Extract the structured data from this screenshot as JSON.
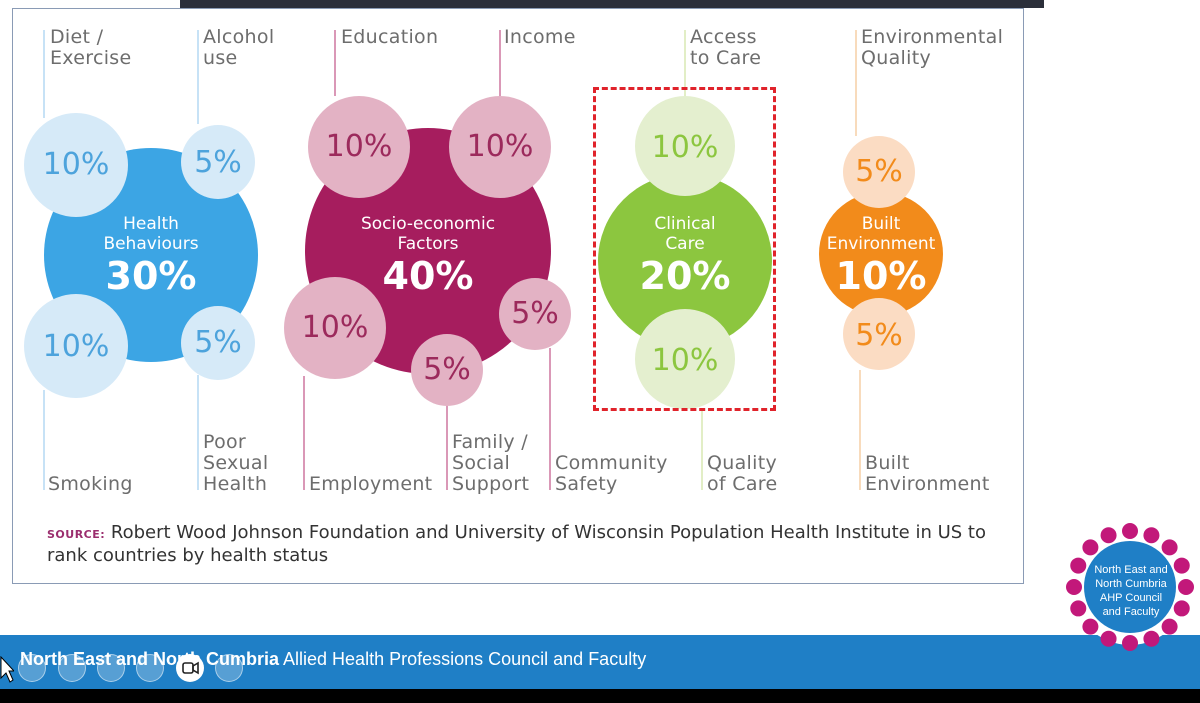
{
  "groups": [
    {
      "name": "Health Behaviours",
      "main_label": "Health\nBehaviours",
      "main_value": "30%",
      "color": "#3ca5e4",
      "sub_color": "#d6eaf8",
      "sub_text_color": "#4da3dc",
      "factors": [
        {
          "label": "Diet /\nExercise",
          "value": "10%"
        },
        {
          "label": "Alcohol\nuse",
          "value": "5%"
        },
        {
          "label": "Smoking",
          "value": "10%"
        },
        {
          "label": "Poor\nSexual\nHealth",
          "value": "5%"
        }
      ]
    },
    {
      "name": "Socio-economic Factors",
      "main_label": "Socio-economic\nFactors",
      "main_value": "40%",
      "color": "#a61d5e",
      "sub_color": "#e3b2c4",
      "sub_text_color": "#9c2a5c",
      "factors": [
        {
          "label": "Education",
          "value": "10%"
        },
        {
          "label": "Income",
          "value": "10%"
        },
        {
          "label": "Employment",
          "value": "10%"
        },
        {
          "label": "Family /\nSocial\nSupport",
          "value": "5%"
        },
        {
          "label": "Community\nSafety",
          "value": "5%"
        }
      ]
    },
    {
      "name": "Clinical Care",
      "main_label": "Clinical\nCare",
      "main_value": "20%",
      "color": "#8cc63f",
      "sub_color": "#e4efcf",
      "sub_text_color": "#8cc63f",
      "factors": [
        {
          "label": "Access\nto Care",
          "value": "10%"
        },
        {
          "label": "Quality\nof Care",
          "value": "10%"
        }
      ]
    },
    {
      "name": "Built Environment",
      "main_label": "Built\nEnvironment",
      "main_value": "10%",
      "color": "#f28b1b",
      "sub_color": "#fbdcc3",
      "sub_text_color": "#f28b1b",
      "factors": [
        {
          "label": "Environmental\nQuality",
          "value": "5%"
        },
        {
          "label": "Built\nEnvironment",
          "value": "5%"
        }
      ]
    }
  ],
  "highlight_color": "#e0232b",
  "source": {
    "tag": "SOURCE:",
    "text": "Robert Wood Johnson Foundation and University of Wisconsin Population Health Institute in US to rank countries by health status"
  },
  "footer": {
    "bold": "North East and North Cumbria",
    "rest": " Allied Health Professions Council and Faculty",
    "color": "#1f7fc6"
  },
  "logo": {
    "text": "North East and\nNorth Cumbria\nAHP Council\nand Faculty",
    "ring_color": "#c2187a"
  },
  "player_controls": [
    "pen-icon",
    "pages-icon",
    "zoom-icon",
    "slides-icon",
    "video-icon",
    "more-icon"
  ]
}
